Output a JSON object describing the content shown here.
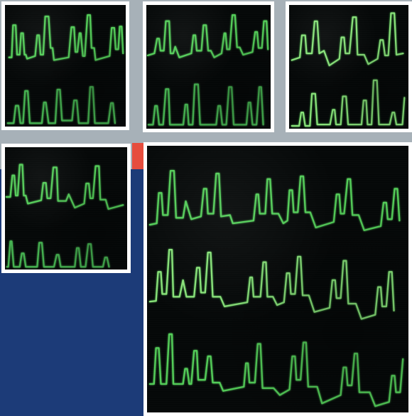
{
  "image": {
    "title": "",
    "subject": "",
    "palette": {
      "background": "#a7b1b8",
      "navy": "#1c3b78",
      "accent": "#e64d3d",
      "screen": "#050808",
      "trace": "#57d45c"
    }
  }
}
